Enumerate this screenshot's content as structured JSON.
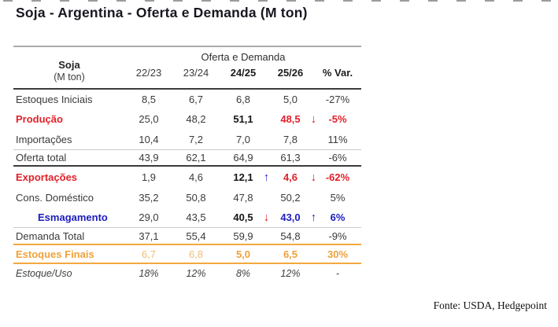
{
  "title": "Soja - Argentina - Oferta e Demanda (M ton)",
  "table": {
    "corner_title": "Soja",
    "corner_subtitle": "(M ton)",
    "group_header": "Oferta e Demanda",
    "columns": [
      "22/23",
      "23/24",
      "24/25",
      "25/26",
      "% Var."
    ],
    "rows": [
      {
        "label": "Estoques Iniciais",
        "values": [
          "8,5",
          "6,7",
          "6,8",
          "5,0",
          "-27%"
        ]
      },
      {
        "label": "Produção",
        "values": [
          "25,0",
          "48,2",
          "51,1",
          "48,5",
          "-5%"
        ],
        "arrow_25_26": "down"
      },
      {
        "label": "Importações",
        "values": [
          "10,4",
          "7,2",
          "7,0",
          "7,8",
          "11%"
        ]
      },
      {
        "label": "Oferta total",
        "values": [
          "43,9",
          "62,1",
          "64,9",
          "61,3",
          "-6%"
        ]
      },
      {
        "label": "Exportações",
        "values": [
          "1,9",
          "4,6",
          "12,1",
          "4,6",
          "-62%"
        ],
        "arrow_24_25": "up",
        "arrow_25_26": "down"
      },
      {
        "label": "Cons. Doméstico",
        "values": [
          "35,2",
          "50,8",
          "47,8",
          "50,2",
          "5%"
        ]
      },
      {
        "label": "Esmagamento",
        "values": [
          "29,0",
          "43,5",
          "40,5",
          "43,0",
          "6%"
        ],
        "arrow_24_25": "down",
        "arrow_25_26": "up"
      },
      {
        "label": "Demanda Total",
        "values": [
          "37,1",
          "55,4",
          "59,9",
          "54,8",
          "-9%"
        ]
      },
      {
        "label": "Estoques Finais",
        "values": [
          "6,7",
          "6,8",
          "5,0",
          "6,5",
          "30%"
        ]
      },
      {
        "label": "Estoque/Uso",
        "values": [
          "18%",
          "12%",
          "8%",
          "12%",
          "-"
        ]
      }
    ]
  },
  "glyphs": {
    "up": "↑",
    "down": "↓"
  },
  "source": "Fonte: USDA, Hedgepoint",
  "colors": {
    "red": "#e2212b",
    "blue": "#1c1cbe",
    "orange": "#f0a13b",
    "orangeLight": "#f2bd79",
    "orangeLine": "#f3a83f",
    "darkLine": "#3c3c3c",
    "grayLine": "#ababab",
    "lightLine": "#cbcbcb",
    "text": "#3b3b3b",
    "title": "#17171f"
  }
}
